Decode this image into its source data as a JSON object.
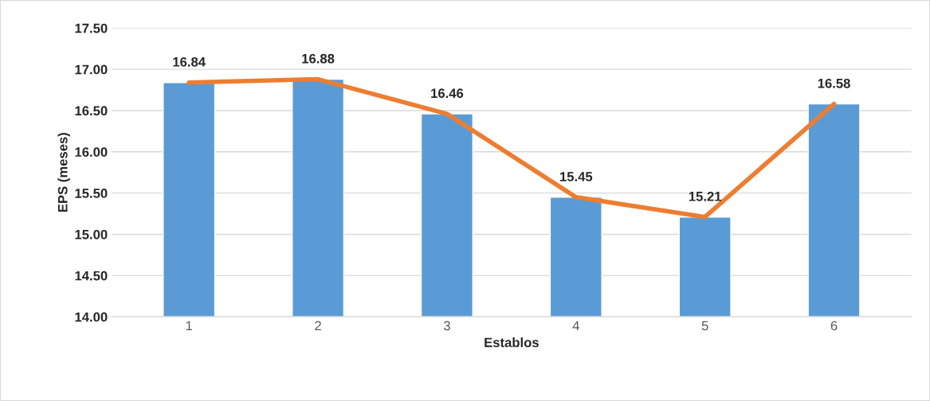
{
  "chart_data": {
    "type": "bar",
    "xlabel": "Establos",
    "ylabel": "EPS (meses)",
    "categories": [
      "1",
      "2",
      "3",
      "4",
      "5",
      "6"
    ],
    "series": [
      {
        "color": "#5b9bd5",
        "values": [
          16.84,
          16.88,
          16.46,
          15.45,
          15.21,
          16.58
        ]
      },
      {
        "type": "line",
        "color": "#ed7d31",
        "values": [
          16.84,
          16.88,
          16.46,
          15.45,
          15.21,
          16.58
        ],
        "data_labels": true
      }
    ],
    "ylim": [
      14,
      17.5
    ],
    "yticks": [
      {
        "value": 14,
        "label": "14.00"
      },
      {
        "value": 14.5,
        "label": "14.50"
      },
      {
        "value": 15,
        "label": "15.00"
      },
      {
        "value": 15.5,
        "label": "15.50"
      },
      {
        "value": 16,
        "label": "16.00"
      },
      {
        "value": 16.5,
        "label": "16.50"
      },
      {
        "value": 17,
        "label": "17.00"
      },
      {
        "value": 17.5,
        "label": "17.50"
      }
    ],
    "grid": "y",
    "legend": false,
    "marker": "none",
    "line_style": "solid"
  }
}
